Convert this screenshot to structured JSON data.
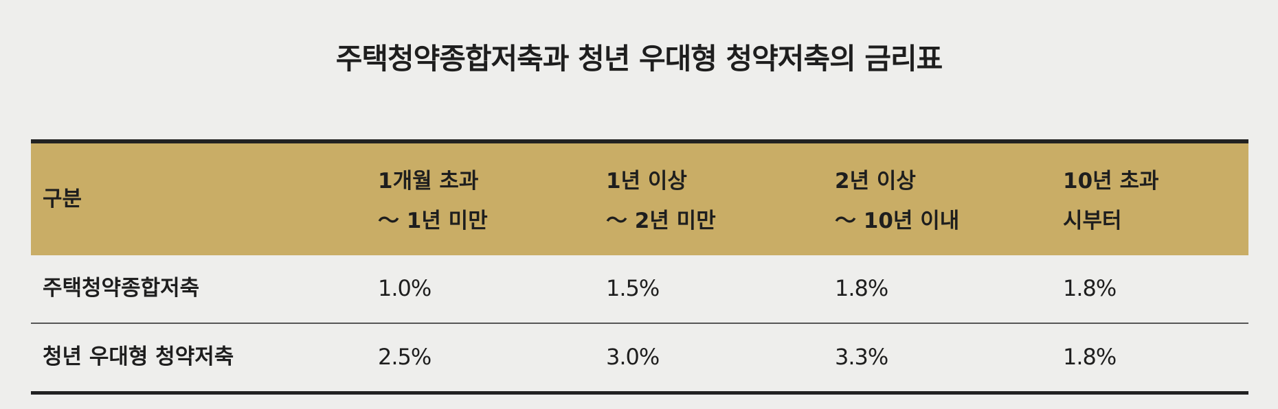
{
  "title": "주택청약종합저축과 청년 우대형 청약저축의 금리표",
  "table": {
    "header": [
      [
        "구분"
      ],
      [
        "1개월 초과",
        "～ 1년 미만"
      ],
      [
        "1년 이상",
        "～ 2년 미만"
      ],
      [
        "2년 이상",
        "～ 10년 이내"
      ],
      [
        "10년 초과",
        "시부터"
      ]
    ],
    "rows": [
      [
        "주택청약종합저축",
        "1.0%",
        "1.5%",
        "1.8%",
        "1.8%"
      ],
      [
        "청년 우대형 청약저축",
        "2.5%",
        "3.0%",
        "3.3%",
        "1.8%"
      ]
    ]
  }
}
